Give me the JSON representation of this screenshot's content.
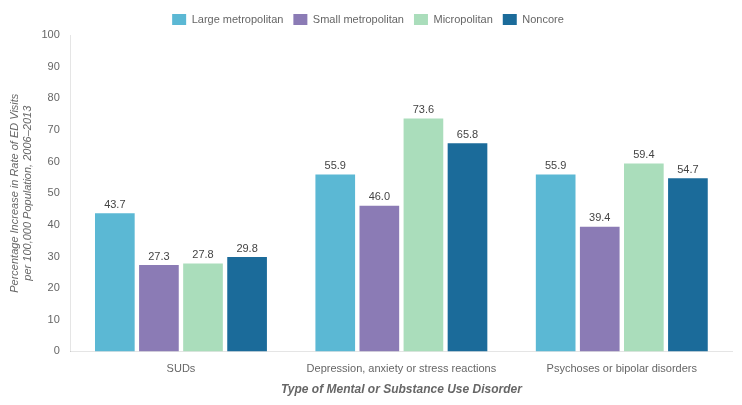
{
  "chart_data": {
    "type": "bar",
    "categories": [
      "SUDs",
      "Depression, anxiety or stress reactions",
      "Psychoses or bipolar disorders"
    ],
    "series": [
      {
        "name": "Large metropolitan",
        "color": "#5BB8D4",
        "values": [
          43.7,
          55.9,
          55.9
        ],
        "value_labels": [
          "43.7",
          "55.9",
          "55.9"
        ]
      },
      {
        "name": "Small metropolitan",
        "color": "#8B7BB5",
        "values": [
          27.3,
          46.0,
          39.4
        ],
        "value_labels": [
          "27.3",
          "46.0",
          "39.4"
        ]
      },
      {
        "name": "Micropolitan",
        "color": "#AADDBB",
        "values": [
          27.8,
          73.6,
          59.4
        ],
        "value_labels": [
          "27.8",
          "73.6",
          "59.4"
        ]
      },
      {
        "name": "Noncore",
        "color": "#1B6B9A",
        "values": [
          29.8,
          65.8,
          54.7
        ],
        "value_labels": [
          "29.8",
          "65.8",
          "54.7"
        ]
      }
    ],
    "ylabel": "Percentage Increase in Rate of ED Visits\nper 100,000 Population, 2006–2013",
    "xlabel": "Type of Mental or Substance Use Disorder",
    "ylim": [
      0,
      100
    ],
    "yticks": [
      0,
      10,
      20,
      30,
      40,
      50,
      60,
      70,
      80,
      90,
      100
    ],
    "grid": false,
    "legend": "top",
    "data_labels": true
  }
}
